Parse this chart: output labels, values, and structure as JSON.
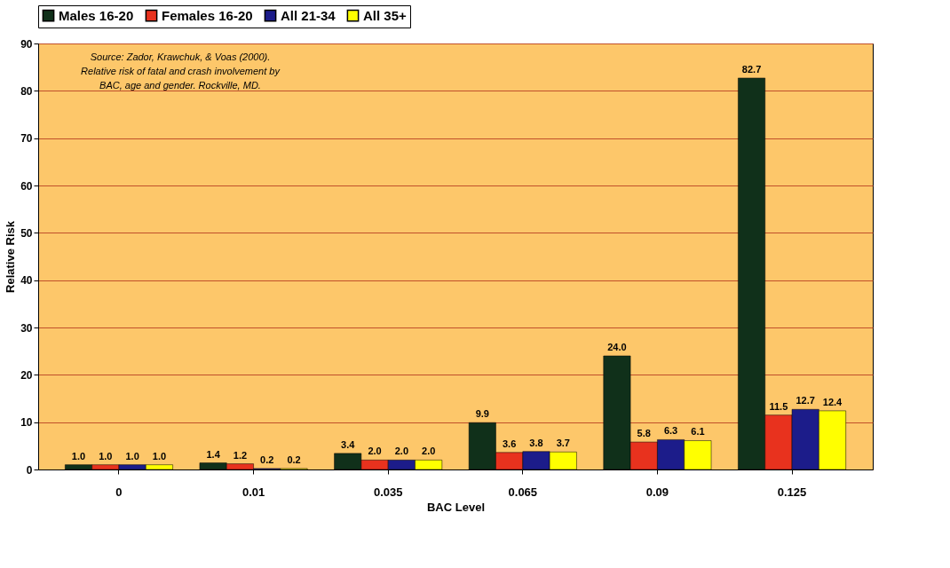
{
  "chart_data": {
    "type": "bar",
    "xlabel": "BAC Level",
    "ylabel": "Relative Risk",
    "categories": [
      "0",
      "0.01",
      "0.035",
      "0.065",
      "0.09",
      "0.125"
    ],
    "series": [
      {
        "name": "Males 16-20",
        "color": "#10301a",
        "values": [
          1.0,
          1.4,
          3.4,
          9.9,
          24.0,
          82.7
        ],
        "value_labels": [
          "1.0",
          "1.4",
          "3.4",
          "9.9",
          "24.0",
          "82.7"
        ]
      },
      {
        "name": "Females 16-20",
        "color": "#e8321e",
        "values": [
          1.0,
          1.2,
          2.0,
          3.6,
          5.8,
          11.5
        ],
        "value_labels": [
          "1.0",
          "1.2",
          "2.0",
          "3.6",
          "5.8",
          "11.5"
        ]
      },
      {
        "name": "All 21-34",
        "color": "#1c1c8a",
        "values": [
          1.0,
          0.2,
          2.0,
          3.8,
          6.3,
          12.7
        ],
        "value_labels": [
          "1.0",
          "0.2",
          "2.0",
          "3.8",
          "6.3",
          "12.7"
        ]
      },
      {
        "name": "All 35+",
        "color": "#ffff00",
        "values": [
          1.0,
          0.2,
          2.0,
          3.7,
          6.1,
          12.4
        ],
        "value_labels": [
          "1.0",
          "0.2",
          "2.0",
          "3.7",
          "6.1",
          "12.4"
        ]
      }
    ],
    "ylim": [
      0,
      90
    ],
    "yticks": [
      0,
      10,
      20,
      30,
      40,
      50,
      60,
      70,
      80,
      90
    ],
    "grid": "y",
    "legend": "top",
    "annotations": [
      "Source: Zador, Krawchuk, & Voas (2000).",
      "Relative risk of fatal and crash involvement by",
      "BAC, age and gender. Rockville, MD."
    ]
  }
}
